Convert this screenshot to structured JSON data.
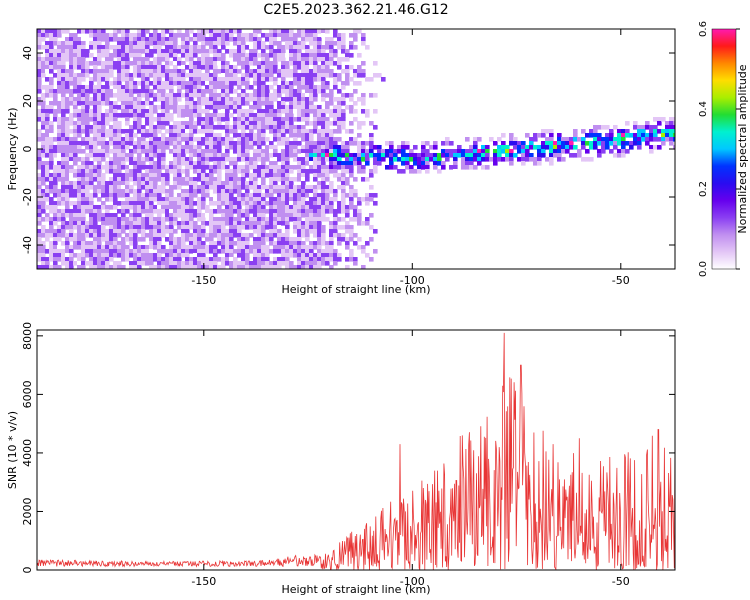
{
  "title": "C2E5.2023.362.21.46.G12",
  "colors": {
    "snr_line": "#e83535",
    "colormap": [
      "#ffffff",
      "#e3c6f6",
      "#c08ff0",
      "#8a3ff2",
      "#6600ee",
      "#2a0cf0",
      "#0033ff",
      "#00c8ff",
      "#00f0d0",
      "#22dd33",
      "#aaee00",
      "#ffdd00",
      "#ff8800",
      "#ff1a1a",
      "#ff1ab0"
    ]
  },
  "chart_data": [
    {
      "type": "heatmap",
      "title": "C2E5.2023.362.21.46.G12",
      "xlabel": "Height of straight line (km)",
      "ylabel": "Frequency (Hz)",
      "xlim": [
        -190,
        -37
      ],
      "ylim": [
        -50,
        50
      ],
      "x_ticks": [
        -150,
        -100,
        -50
      ],
      "y_ticks": [
        -40,
        -20,
        0,
        20,
        40
      ],
      "colorbar": {
        "label": "Normalized spectral amplitude",
        "range": [
          0.0,
          0.6
        ],
        "ticks": [
          "0.0",
          "0.2",
          "0.4",
          "0.6"
        ]
      },
      "description_data": {
        "noise_region_x": [
          -190,
          -122
        ],
        "signal_band_start": -125,
        "signal_center_hz": [
          [
            -125,
            -2
          ],
          [
            -100,
            -3
          ],
          [
            -60,
            3
          ],
          [
            -40,
            7
          ]
        ],
        "signal_halfwidth_hz": 5,
        "peak_amplitude": 0.6
      }
    },
    {
      "type": "line",
      "xlabel": "Height of straight line (km)",
      "ylabel": "SNR (10 * v/v)",
      "xlim": [
        -190,
        -37
      ],
      "ylim": [
        0,
        8200
      ],
      "x_ticks": [
        -150,
        -100,
        -50
      ],
      "y_ticks": [
        0,
        2000,
        4000,
        6000,
        8000
      ],
      "series": [
        {
          "envelope": [
            [
              -190,
              350
            ],
            [
              -160,
              300
            ],
            [
              -135,
              330
            ],
            [
              -120,
              700
            ],
            [
              -110,
              1900
            ],
            [
              -100,
              2800
            ],
            [
              -90,
              4500
            ],
            [
              -80,
              5800
            ],
            [
              -77,
              8100
            ],
            [
              -72,
              5500
            ],
            [
              -65,
              4200
            ],
            [
              -55,
              3800
            ],
            [
              -45,
              4600
            ],
            [
              -37,
              4900
            ]
          ],
          "notable_peaks": [
            [
              -78,
              8100
            ],
            [
              -74,
              7000
            ],
            [
              -103,
              4300
            ],
            [
              -88,
              4600
            ],
            [
              -60,
              4500
            ],
            [
              -41,
              4800
            ]
          ]
        }
      ]
    }
  ]
}
